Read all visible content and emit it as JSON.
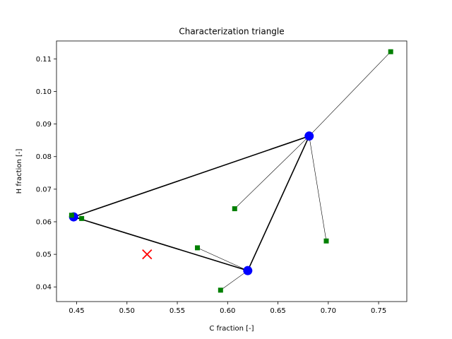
{
  "chart_data": {
    "type": "scatter",
    "title": "Characterization triangle",
    "xlabel": "C fraction [-]",
    "ylabel": "H fraction [-]",
    "xlim": [
      0.43,
      0.778
    ],
    "ylim": [
      0.0355,
      0.1155
    ],
    "xticks": [
      0.45,
      0.5,
      0.55,
      0.6,
      0.65,
      0.7,
      0.75
    ],
    "xtick_labels": [
      "0.45",
      "0.50",
      "0.55",
      "0.60",
      "0.65",
      "0.70",
      "0.75"
    ],
    "yticks": [
      0.04,
      0.05,
      0.06,
      0.07,
      0.08,
      0.09,
      0.1,
      0.11
    ],
    "ytick_labels": [
      "0.04",
      "0.05",
      "0.06",
      "0.07",
      "0.08",
      "0.09",
      "0.10",
      "0.11"
    ],
    "grid": false,
    "legend": "none",
    "triangle_vertices": [
      {
        "x": 0.447,
        "y": 0.0615
      },
      {
        "x": 0.681,
        "y": 0.0863
      },
      {
        "x": 0.62,
        "y": 0.045
      }
    ],
    "fuels": [
      {
        "x": 0.445,
        "y": 0.062,
        "vertex": 0
      },
      {
        "x": 0.455,
        "y": 0.061,
        "vertex": 0
      },
      {
        "x": 0.607,
        "y": 0.064,
        "vertex": 1
      },
      {
        "x": 0.762,
        "y": 0.1122,
        "vertex": 1
      },
      {
        "x": 0.698,
        "y": 0.0541,
        "vertex": 1
      },
      {
        "x": 0.57,
        "y": 0.052,
        "vertex": 2
      },
      {
        "x": 0.593,
        "y": 0.039,
        "vertex": 2
      }
    ],
    "target": {
      "x": 0.52,
      "y": 0.05
    },
    "colors": {
      "vertex": "#0000ff",
      "fuel": "#007f00",
      "target": "#ff0000",
      "line": "#000000"
    }
  }
}
